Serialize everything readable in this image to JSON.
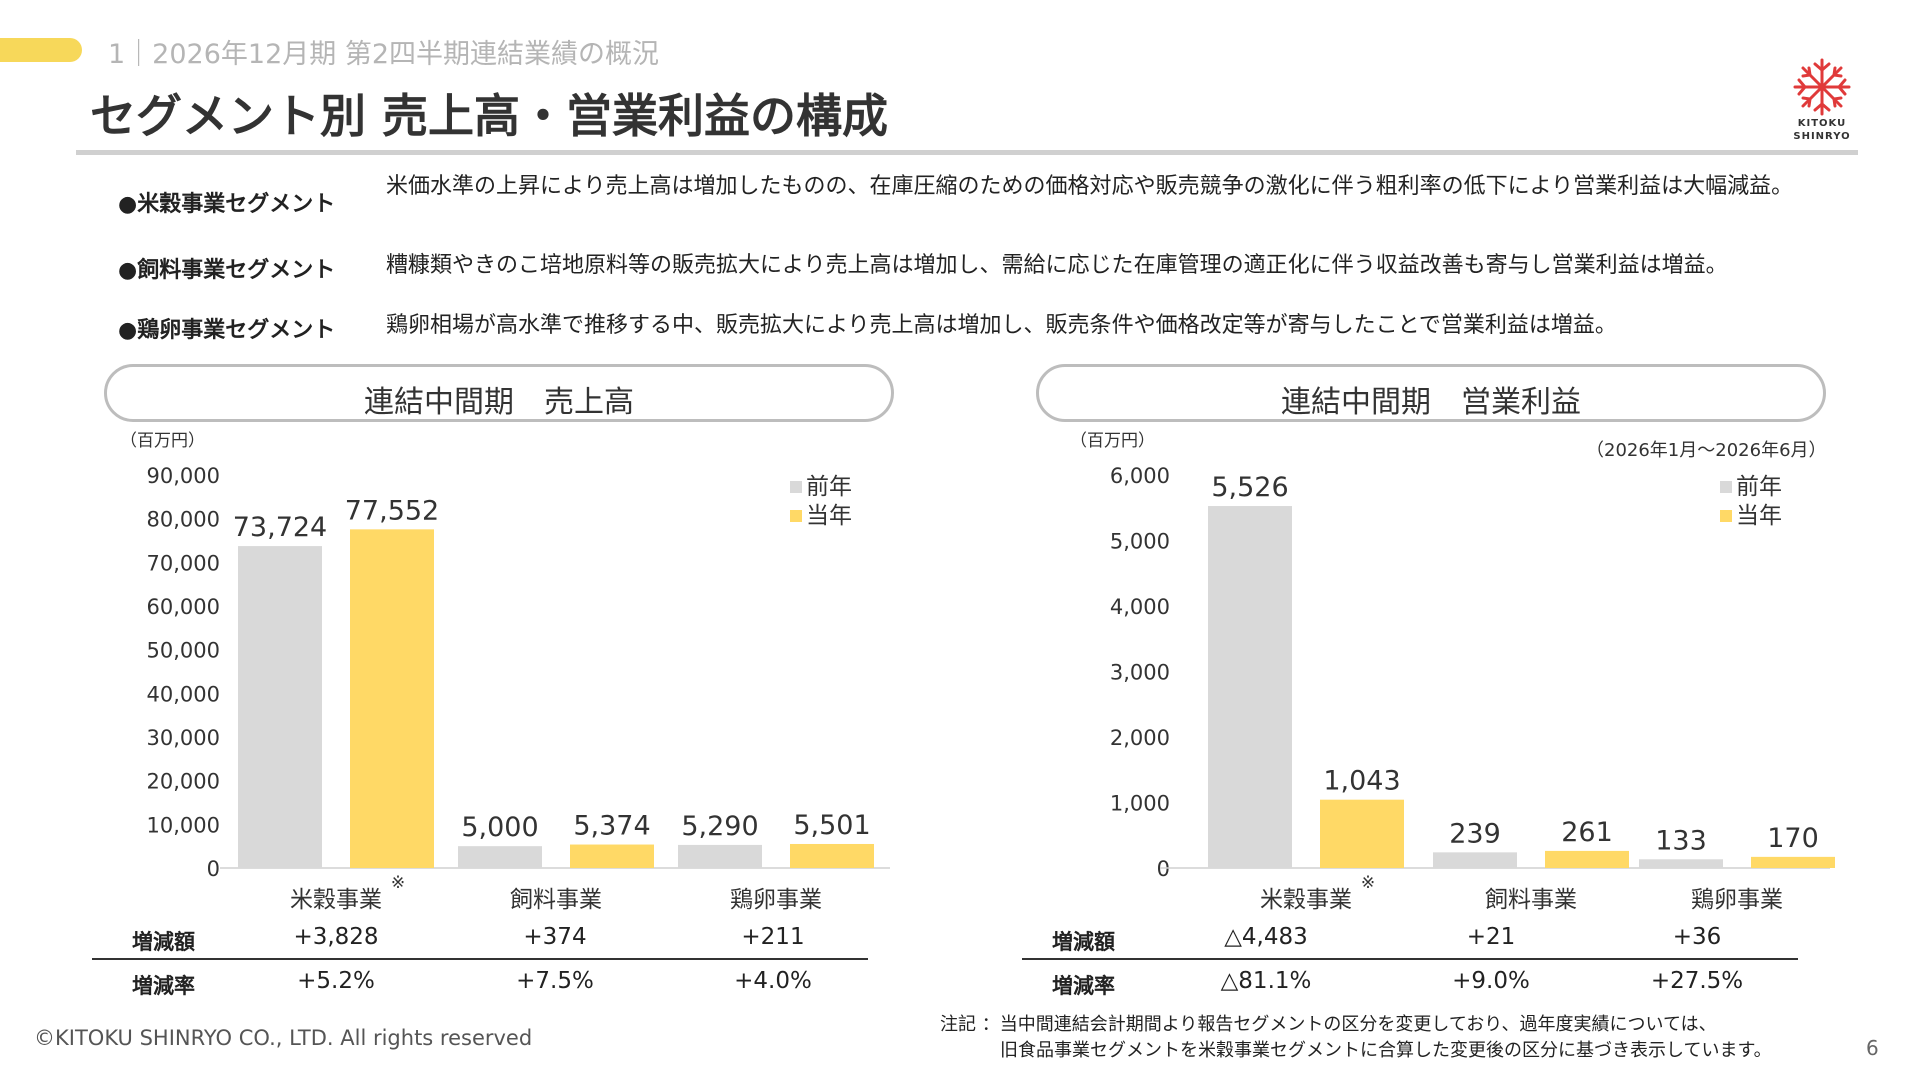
{
  "header": {
    "section_label": "1｜2026年12月期 第2四半期連結業績の概況",
    "title": "セグメント別 売上高・営業利益の構成",
    "logo_line1": "KITOKU",
    "logo_line2": "SHINRYO"
  },
  "bullets": [
    {
      "label": "●米穀事業セグメント",
      "text": "米価水準の上昇により売上高は増加したものの、在庫圧縮のための価格対応や販売競争の激化に伴う粗利率の低下により営業利益は大幅減益。"
    },
    {
      "label": "●飼料事業セグメント",
      "text": "糟糠類やきのこ培地原料等の販売拡大により売上高は増加し、需給に応じた在庫管理の適正化に伴う収益改善も寄与し営業利益は増益。"
    },
    {
      "label": "●鶏卵事業セグメント",
      "text": "鶏卵相場が高水準で推移する中、販売拡大により売上高は増加し、販売条件や価格改定等が寄与したことで営業利益は増益。"
    }
  ],
  "period_note": "（2026年1月～2026年6月）",
  "colors": {
    "prev": "#d9d9d9",
    "curr": "#ffd966",
    "accent": "#f7d85a",
    "logo_red": "#e03a3a"
  },
  "chart_data": [
    {
      "type": "bar",
      "title": "連結中間期　売上高",
      "unit_label": "（百万円）",
      "categories": [
        "米穀事業",
        "飼料事業",
        "鶏卵事業"
      ],
      "category_marks": [
        "※",
        "",
        ""
      ],
      "series": [
        {
          "name": "前年",
          "values": [
            73724,
            5000,
            5290
          ],
          "labels": [
            "73,724",
            "5,000",
            "5,290"
          ]
        },
        {
          "name": "当年",
          "values": [
            77552,
            5374,
            5501
          ],
          "labels": [
            "77,552",
            "5,374",
            "5,501"
          ]
        }
      ],
      "ylim": [
        0,
        90000
      ],
      "yticks": [
        0,
        10000,
        20000,
        30000,
        40000,
        50000,
        60000,
        70000,
        80000,
        90000
      ],
      "ytick_labels": [
        "0",
        "10,000",
        "20,000",
        "30,000",
        "40,000",
        "50,000",
        "60,000",
        "70,000",
        "80,000",
        "90,000"
      ],
      "legend_position": "top-right",
      "change_amount_label": "増減額",
      "change_amount": [
        "+3,828",
        "+374",
        "+211"
      ],
      "change_rate_label": "増減率",
      "change_rate": [
        "+5.2%",
        "+7.5%",
        "+4.0%"
      ]
    },
    {
      "type": "bar",
      "title": "連結中間期　営業利益",
      "unit_label": "（百万円）",
      "categories": [
        "米穀事業",
        "飼料事業",
        "鶏卵事業"
      ],
      "category_marks": [
        "※",
        "",
        ""
      ],
      "series": [
        {
          "name": "前年",
          "values": [
            5526,
            239,
            133
          ],
          "labels": [
            "5,526",
            "239",
            "133"
          ]
        },
        {
          "name": "当年",
          "values": [
            1043,
            261,
            170
          ],
          "labels": [
            "1,043",
            "261",
            "170"
          ]
        }
      ],
      "ylim": [
        0,
        6000
      ],
      "yticks": [
        0,
        1000,
        2000,
        3000,
        4000,
        5000,
        6000
      ],
      "ytick_labels": [
        "0",
        "1,000",
        "2,000",
        "3,000",
        "4,000",
        "5,000",
        "6,000"
      ],
      "legend_position": "top-right",
      "change_amount_label": "増減額",
      "change_amount": [
        "△4,483",
        "+21",
        "+36"
      ],
      "change_rate_label": "増減率",
      "change_rate": [
        "△81.1%",
        "+9.0%",
        "+27.5%"
      ]
    }
  ],
  "footer": {
    "copyright": "©KITOKU SHINRYO CO., LTD. All rights reserved",
    "note_line1": "注記 ：当中間連結会計期間より報告セグメントの区分を変更しており、過年度実績については、",
    "note_line2": "旧食品事業セグメントを米穀事業セグメントに合算した変更後の区分に基づき表示しています。",
    "page_number": "6"
  }
}
